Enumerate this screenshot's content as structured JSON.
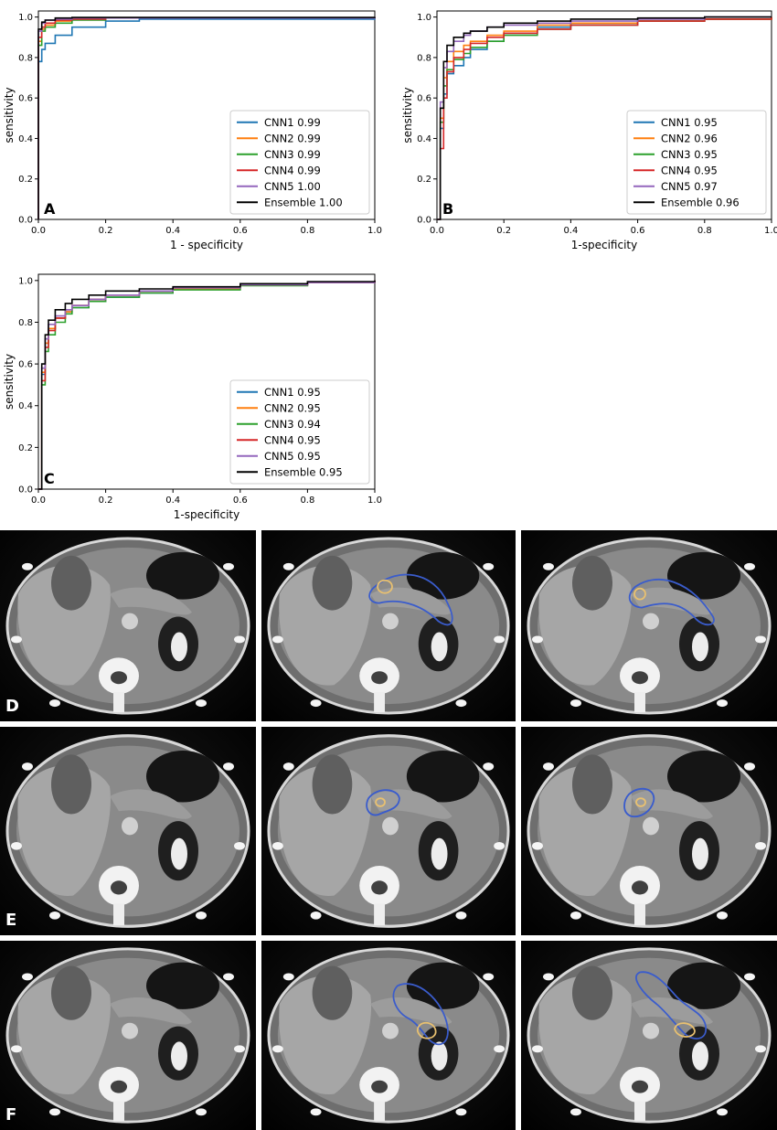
{
  "chart_data": [
    {
      "type": "line",
      "panel_label": "A",
      "xlabel": "1 - specificity",
      "ylabel": "sensitivity",
      "xlim": [
        0,
        1
      ],
      "ylim": [
        0,
        1.03
      ],
      "xticks": [
        "0.0",
        "0.2",
        "0.4",
        "0.6",
        "0.8",
        "1.0"
      ],
      "yticks": [
        "0.0",
        "0.2",
        "0.4",
        "0.6",
        "0.8",
        "1.0"
      ],
      "legend_position": "lower-right",
      "series": [
        {
          "name": "CNN1 0.99",
          "color": "#1f77b4",
          "x": [
            0,
            0.0,
            0.01,
            0.02,
            0.05,
            0.1,
            0.2,
            0.3,
            1.0
          ],
          "y": [
            0,
            0.78,
            0.84,
            0.87,
            0.91,
            0.95,
            0.98,
            0.99,
            1.0
          ]
        },
        {
          "name": "CNN2 0.99",
          "color": "#ff7f0e",
          "x": [
            0,
            0.0,
            0.01,
            0.02,
            0.05,
            0.1,
            0.2,
            1.0
          ],
          "y": [
            0,
            0.88,
            0.94,
            0.96,
            0.98,
            0.99,
            0.995,
            1.0
          ]
        },
        {
          "name": "CNN3 0.99",
          "color": "#2ca02c",
          "x": [
            0,
            0.0,
            0.01,
            0.02,
            0.05,
            0.1,
            0.2,
            1.0
          ],
          "y": [
            0,
            0.86,
            0.93,
            0.95,
            0.97,
            0.985,
            0.995,
            1.0
          ]
        },
        {
          "name": "CNN4 0.99",
          "color": "#d62728",
          "x": [
            0,
            0.0,
            0.01,
            0.02,
            0.05,
            0.1,
            0.2,
            1.0
          ],
          "y": [
            0,
            0.9,
            0.95,
            0.97,
            0.985,
            0.99,
            0.995,
            1.0
          ]
        },
        {
          "name": "CNN5 1.00",
          "color": "#9467bd",
          "x": [
            0,
            0.0,
            0.01,
            0.02,
            0.05,
            0.1,
            1.0
          ],
          "y": [
            0,
            0.93,
            0.97,
            0.985,
            0.99,
            0.995,
            1.0
          ]
        },
        {
          "name": "Ensemble 1.00",
          "color": "#000000",
          "x": [
            0,
            0.0,
            0.01,
            0.02,
            0.05,
            0.1,
            1.0
          ],
          "y": [
            0,
            0.94,
            0.975,
            0.985,
            0.995,
            0.998,
            1.0
          ]
        }
      ]
    },
    {
      "type": "line",
      "panel_label": "B",
      "xlabel": "1-specificity",
      "ylabel": "sensitivity",
      "xlim": [
        0,
        1
      ],
      "ylim": [
        0,
        1.03
      ],
      "xticks": [
        "0.0",
        "0.2",
        "0.4",
        "0.6",
        "0.8",
        "1.0"
      ],
      "yticks": [
        "0.0",
        "0.2",
        "0.4",
        "0.6",
        "0.8",
        "1.0"
      ],
      "legend_position": "lower-right",
      "series": [
        {
          "name": "CNN1 0.95",
          "color": "#1f77b4",
          "x": [
            0,
            0.01,
            0.02,
            0.03,
            0.05,
            0.08,
            0.1,
            0.15,
            0.2,
            0.3,
            0.4,
            0.6,
            0.8,
            1.0
          ],
          "y": [
            0,
            0.45,
            0.62,
            0.72,
            0.76,
            0.8,
            0.84,
            0.88,
            0.92,
            0.95,
            0.97,
            0.98,
            0.99,
            1.0
          ]
        },
        {
          "name": "CNN2 0.96",
          "color": "#ff7f0e",
          "x": [
            0,
            0.01,
            0.02,
            0.03,
            0.05,
            0.08,
            0.1,
            0.15,
            0.2,
            0.3,
            0.4,
            0.6,
            0.8,
            1.0
          ],
          "y": [
            0,
            0.5,
            0.7,
            0.78,
            0.83,
            0.86,
            0.88,
            0.91,
            0.93,
            0.96,
            0.97,
            0.98,
            0.99,
            1.0
          ]
        },
        {
          "name": "CNN3 0.95",
          "color": "#2ca02c",
          "x": [
            0,
            0.01,
            0.02,
            0.03,
            0.05,
            0.08,
            0.1,
            0.15,
            0.2,
            0.3,
            0.4,
            0.6,
            0.8,
            1.0
          ],
          "y": [
            0,
            0.48,
            0.66,
            0.74,
            0.79,
            0.82,
            0.85,
            0.88,
            0.91,
            0.94,
            0.96,
            0.98,
            0.99,
            1.0
          ]
        },
        {
          "name": "CNN4 0.95",
          "color": "#d62728",
          "x": [
            0,
            0.01,
            0.02,
            0.03,
            0.05,
            0.08,
            0.1,
            0.15,
            0.2,
            0.3,
            0.4,
            0.6,
            0.8,
            1.0
          ],
          "y": [
            0,
            0.35,
            0.6,
            0.73,
            0.8,
            0.84,
            0.87,
            0.9,
            0.92,
            0.94,
            0.96,
            0.98,
            0.99,
            1.0
          ]
        },
        {
          "name": "CNN5 0.97",
          "color": "#9467bd",
          "x": [
            0,
            0.01,
            0.02,
            0.03,
            0.05,
            0.08,
            0.1,
            0.15,
            0.2,
            0.3,
            0.4,
            0.6,
            0.8,
            1.0
          ],
          "y": [
            0,
            0.58,
            0.75,
            0.83,
            0.88,
            0.91,
            0.93,
            0.95,
            0.96,
            0.97,
            0.98,
            0.99,
            1.0,
            1.0
          ]
        },
        {
          "name": "Ensemble 0.96",
          "color": "#000000",
          "x": [
            0,
            0.01,
            0.02,
            0.03,
            0.05,
            0.08,
            0.1,
            0.15,
            0.2,
            0.3,
            0.4,
            0.6,
            0.8,
            1.0
          ],
          "y": [
            0,
            0.55,
            0.78,
            0.86,
            0.9,
            0.92,
            0.93,
            0.95,
            0.97,
            0.98,
            0.99,
            0.995,
            1.0,
            1.0
          ]
        }
      ]
    },
    {
      "type": "line",
      "panel_label": "C",
      "xlabel": "1-specificity",
      "ylabel": "sensitivity",
      "xlim": [
        0,
        1
      ],
      "ylim": [
        0,
        1.03
      ],
      "xticks": [
        "0.0",
        "0.2",
        "0.4",
        "0.6",
        "0.8",
        "1.0"
      ],
      "yticks": [
        "0.0",
        "0.2",
        "0.4",
        "0.6",
        "0.8",
        "1.0"
      ],
      "legend_position": "lower-right",
      "series": [
        {
          "name": "CNN1 0.95",
          "color": "#1f77b4",
          "x": [
            0,
            0.01,
            0.02,
            0.03,
            0.05,
            0.08,
            0.1,
            0.15,
            0.2,
            0.3,
            0.4,
            0.6,
            0.8,
            1.0
          ],
          "y": [
            0,
            0.55,
            0.7,
            0.77,
            0.82,
            0.85,
            0.87,
            0.9,
            0.92,
            0.94,
            0.96,
            0.98,
            0.99,
            1.0
          ]
        },
        {
          "name": "CNN2 0.95",
          "color": "#ff7f0e",
          "x": [
            0,
            0.01,
            0.02,
            0.03,
            0.05,
            0.08,
            0.1,
            0.15,
            0.2,
            0.3,
            0.4,
            0.6,
            0.8,
            1.0
          ],
          "y": [
            0,
            0.56,
            0.7,
            0.77,
            0.82,
            0.85,
            0.88,
            0.91,
            0.93,
            0.95,
            0.96,
            0.98,
            0.99,
            1.0
          ]
        },
        {
          "name": "CNN3 0.94",
          "color": "#2ca02c",
          "x": [
            0,
            0.01,
            0.02,
            0.03,
            0.05,
            0.08,
            0.1,
            0.15,
            0.2,
            0.3,
            0.4,
            0.6,
            0.8,
            1.0
          ],
          "y": [
            0,
            0.5,
            0.66,
            0.74,
            0.8,
            0.84,
            0.87,
            0.9,
            0.92,
            0.94,
            0.955,
            0.975,
            0.99,
            1.0
          ]
        },
        {
          "name": "CNN4 0.95",
          "color": "#d62728",
          "x": [
            0,
            0.01,
            0.02,
            0.03,
            0.05,
            0.08,
            0.1,
            0.15,
            0.2,
            0.3,
            0.4,
            0.6,
            0.8,
            1.0
          ],
          "y": [
            0,
            0.52,
            0.68,
            0.76,
            0.82,
            0.86,
            0.88,
            0.91,
            0.93,
            0.95,
            0.965,
            0.98,
            0.99,
            1.0
          ]
        },
        {
          "name": "CNN5 0.95",
          "color": "#9467bd",
          "x": [
            0,
            0.01,
            0.02,
            0.03,
            0.05,
            0.08,
            0.1,
            0.15,
            0.2,
            0.3,
            0.4,
            0.6,
            0.8,
            1.0
          ],
          "y": [
            0,
            0.58,
            0.72,
            0.79,
            0.83,
            0.86,
            0.88,
            0.91,
            0.93,
            0.95,
            0.965,
            0.98,
            0.99,
            1.0
          ]
        },
        {
          "name": "Ensemble 0.95",
          "color": "#000000",
          "x": [
            0,
            0.01,
            0.02,
            0.03,
            0.05,
            0.08,
            0.1,
            0.15,
            0.2,
            0.3,
            0.4,
            0.6,
            0.8,
            1.0
          ],
          "y": [
            0,
            0.6,
            0.74,
            0.81,
            0.86,
            0.89,
            0.91,
            0.93,
            0.95,
            0.96,
            0.97,
            0.985,
            0.995,
            1.0
          ]
        }
      ]
    }
  ],
  "ct_rows": [
    {
      "label": "D"
    },
    {
      "label": "E"
    },
    {
      "label": "F"
    }
  ],
  "colors": {
    "contour_blue": "#3a5ccc",
    "contour_yellow": "#e8c070"
  }
}
